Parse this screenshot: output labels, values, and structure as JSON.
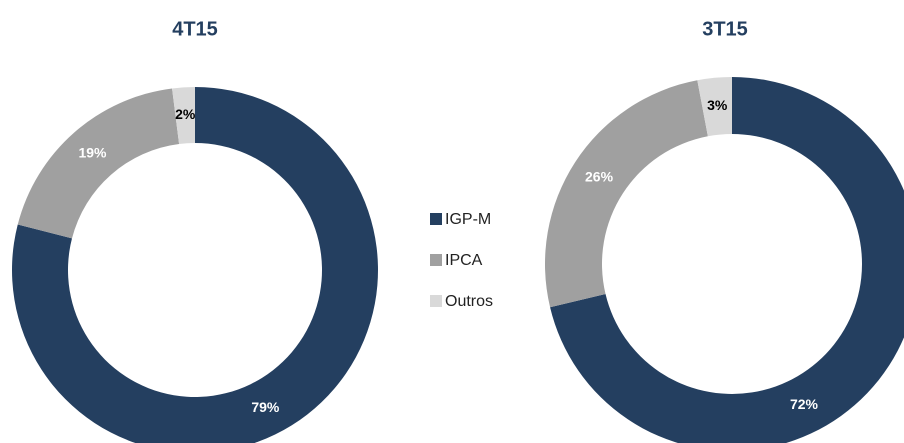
{
  "chart_data": [
    {
      "type": "donut",
      "title": "4T15",
      "categories": [
        "IGP-M",
        "IPCA",
        "Outros"
      ],
      "values": [
        79,
        19,
        2
      ],
      "value_labels": [
        "79%",
        "19%",
        "2%"
      ],
      "colors": [
        "#243f60",
        "#a0a0a0",
        "#d9d9d9"
      ]
    },
    {
      "type": "donut",
      "title": "3T15",
      "categories": [
        "IGP-M",
        "IPCA",
        "Outros"
      ],
      "values": [
        72,
        26,
        3
      ],
      "value_labels": [
        "72%",
        "26%",
        "3%"
      ],
      "colors": [
        "#243f60",
        "#a0a0a0",
        "#d9d9d9"
      ]
    }
  ]
}
